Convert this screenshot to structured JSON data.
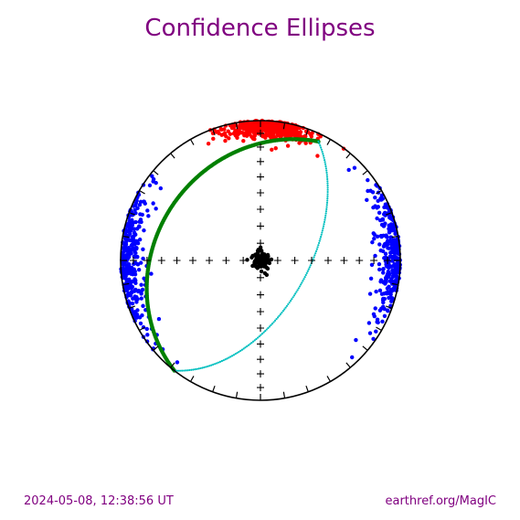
{
  "colors": {
    "title": "#800080",
    "frame": "#000000",
    "series_blue": "#0000ff",
    "series_red": "#ff0000",
    "series_green": "#008000",
    "series_cyan": "#00bfbf",
    "series_black": "#000000"
  },
  "footer": {
    "timestamp": "2024-05-08, 12:38:56 UT",
    "credit": "earthref.org/MagIC"
  },
  "chart_data": {
    "type": "scatter",
    "projection": "equal-area stereonet",
    "title": "Confidence Ellipses",
    "center_cross_tick_step_deg": 10,
    "rim_tick_step_deg": 10,
    "series": [
      {
        "color_key": "series_red",
        "marker": "dot",
        "cluster": {
          "declination_deg": 3,
          "inclination_deg": 5,
          "spread_deg": 9,
          "count": 480
        }
      },
      {
        "color_key": "series_blue",
        "marker": "dot",
        "cluster": {
          "declination_deg": 88,
          "inclination_deg": 2,
          "spread_deg": 16,
          "count": 300
        }
      },
      {
        "color_key": "series_blue",
        "marker": "dot",
        "cluster": {
          "declination_deg": 270,
          "inclination_deg": 2,
          "spread_deg": 16,
          "count": 300
        }
      },
      {
        "color_key": "series_green",
        "marker": "dot",
        "trace": {
          "from": {
            "declination_deg": 218,
            "inclination_deg": 0
          },
          "to": {
            "declination_deg": 26,
            "inclination_deg": 6
          },
          "count": 220
        }
      },
      {
        "color_key": "series_cyan",
        "marker": "small-dot",
        "trace": {
          "from": {
            "declination_deg": 218,
            "inclination_deg": 0
          },
          "to": {
            "declination_deg": 26,
            "inclination_deg": 6
          },
          "via": {
            "declination_deg": 140,
            "inclination_deg": 54
          },
          "count": 150
        }
      },
      {
        "color_key": "series_black",
        "marker": "dot",
        "cluster": {
          "declination_deg": 0,
          "inclination_deg": 89,
          "spread_deg": 3,
          "count": 160
        }
      }
    ]
  }
}
